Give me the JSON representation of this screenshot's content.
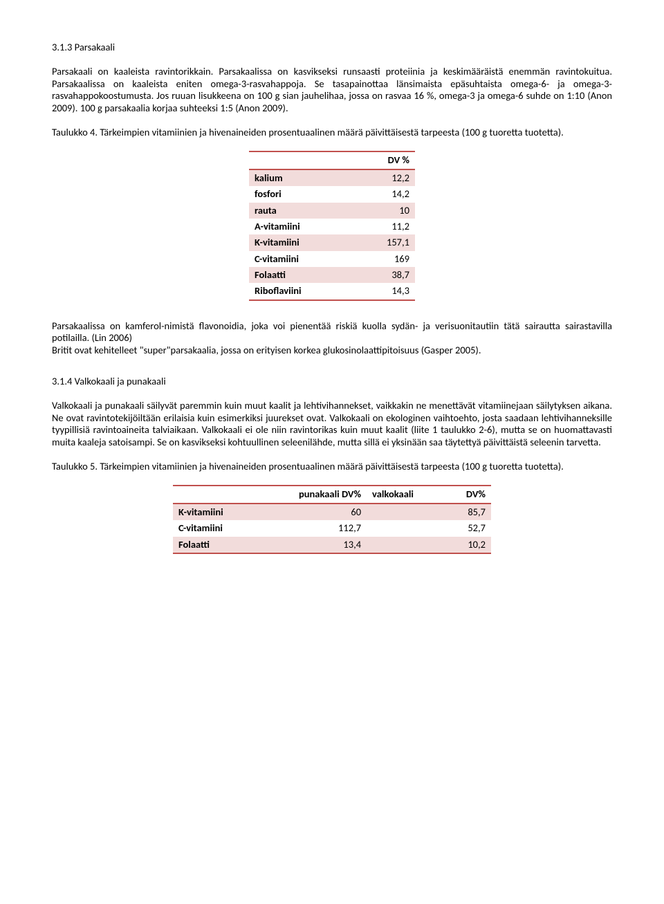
{
  "colors": {
    "table_border": "#c0504d",
    "table_stripe": "#f2dcdb",
    "text": "#000000",
    "background": "#ffffff"
  },
  "typography": {
    "font_family": "Calibri, Arial, sans-serif",
    "font_size_pt": 11,
    "line_height": 1.2
  },
  "section1": {
    "heading": "3.1.3 Parsakaali",
    "para1": "Parsakaali on kaaleista ravintorikkain. Parsakaalissa on kasvikseksi runsaasti proteiinia ja keskimääräistä enemmän ravintokuitua. Parsakaalissa on kaaleista eniten omega-3-rasvahappoja. Se tasapainottaa länsimaista epäsuhtaista omega-6- ja omega-3-rasvahappokoostumusta. Jos ruuan lisukkeena on 100 g sian jauhelihaa, jossa on rasvaa 16 %, omega-3 ja omega-6 suhde on 1:10 (Anon 2009). 100 g parsakaalia korjaa suhteeksi 1:5 (Anon 2009).",
    "table_caption": "Taulukko 4. Tärkeimpien vitamiinien ja hivenaineiden prosentuaalinen määrä päivittäisestä tarpeesta (100 g tuoretta tuotetta).",
    "table": {
      "type": "table",
      "header": [
        "",
        "DV %"
      ],
      "rows": [
        [
          "kalium",
          "12,2"
        ],
        [
          "fosfori",
          "14,2"
        ],
        [
          "rauta",
          "10"
        ],
        [
          "A-vitamiini",
          "11,2"
        ],
        [
          "K-vitamiini",
          "157,1"
        ],
        [
          "C-vitamiini",
          "169"
        ],
        [
          "Folaatti",
          "38,7"
        ],
        [
          "Riboflaviini",
          "14,3"
        ]
      ],
      "col_align": [
        "left",
        "right"
      ],
      "stripe_rows": [
        0,
        2,
        4,
        6
      ],
      "col_widths": [
        "60%",
        "40%"
      ]
    },
    "para2": "Parsakaalissa on kamferol-nimistä flavonoidia, joka voi pienentää riskiä kuolla sydän- ja verisuonitautiin tätä sairautta sairastavilla potilailla. (Lin 2006)",
    "para3": "Britit ovat kehitelleet \"super\"parsakaalia, jossa on erityisen korkea glukosinolaattipitoisuus (Gasper 2005)."
  },
  "section2": {
    "heading": "3.1.4 Valkokaali ja punakaali",
    "para1": "Valkokaali ja punakaali säilyvät paremmin kuin muut kaalit ja lehtivihannekset, vaikkakin ne menettävät vitamiinejaan säilytyksen aikana. Ne ovat ravintotekijöiltään erilaisia kuin esimerkiksi juurekset ovat. Valkokaali on ekologinen vaihtoehto, josta saadaan lehtivihanneksille tyypillisiä ravintoaineita talviaikaan. Valkokaali ei ole niin ravintorikas kuin muut kaalit (liite 1 taulukko 2-6), mutta se on huomattavasti muita kaaleja satoisampi. Se on kasvikseksi kohtuullinen seleenilähde, mutta sillä ei yksinään saa täytettyä päivittäistä seleenin tarvetta.",
    "table_caption": "Taulukko 5. Tärkeimpien vitamiinien ja hivenaineiden prosentuaalinen määrä päivittäisestä tarpeesta (100 g tuoretta tuotetta).",
    "table": {
      "type": "table",
      "header": [
        "",
        "punakaali DV%",
        "valkokaali",
        "DV%"
      ],
      "rows": [
        [
          "K-vitamiini",
          "60",
          "",
          "85,7"
        ],
        [
          "C-vitamiini",
          "112,7",
          "",
          "52,7"
        ],
        [
          "Folaatti",
          "13,4",
          "",
          "10,2"
        ]
      ],
      "col_align": [
        "left",
        "right",
        "left",
        "right"
      ],
      "stripe_rows": [
        0,
        2
      ],
      "col_widths": [
        "28%",
        "28%",
        "24%",
        "20%"
      ]
    }
  }
}
